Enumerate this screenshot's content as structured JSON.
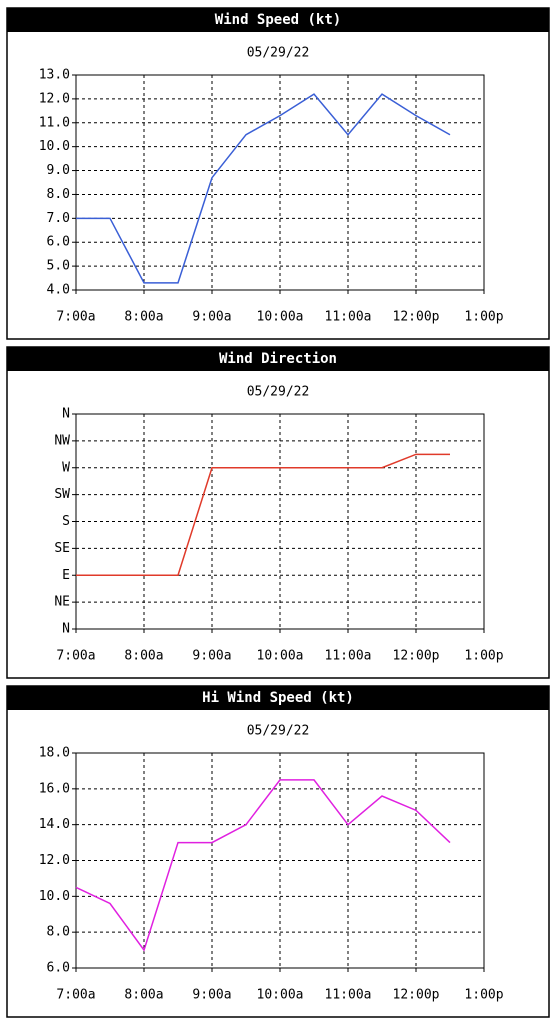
{
  "chart_data": [
    {
      "type": "line",
      "title": "Wind Speed (kt)",
      "subtitle": "05/29/22",
      "x": [
        7,
        7.5,
        8,
        8.5,
        9,
        9.5,
        10,
        10.5,
        11,
        11.5,
        12,
        12.5
      ],
      "values": [
        7.0,
        7.0,
        4.3,
        4.3,
        8.7,
        10.5,
        11.3,
        12.2,
        10.5,
        12.2,
        11.3,
        10.5
      ],
      "color": "#3a5fd6",
      "xlim": [
        7,
        13
      ],
      "xticks": [
        {
          "value": 7,
          "label": "7:00a"
        },
        {
          "value": 8,
          "label": "8:00a"
        },
        {
          "value": 9,
          "label": "9:00a"
        },
        {
          "value": 10,
          "label": "10:00a"
        },
        {
          "value": 11,
          "label": "11:00a"
        },
        {
          "value": 12,
          "label": "12:00p"
        },
        {
          "value": 13,
          "label": "1:00p"
        }
      ],
      "ylim": [
        4,
        13
      ],
      "yticks": [
        {
          "value": 4,
          "label": "4.0"
        },
        {
          "value": 5,
          "label": "5.0"
        },
        {
          "value": 6,
          "label": "6.0"
        },
        {
          "value": 7,
          "label": "7.0"
        },
        {
          "value": 8,
          "label": "8.0"
        },
        {
          "value": 9,
          "label": "9.0"
        },
        {
          "value": 10,
          "label": "10.0"
        },
        {
          "value": 11,
          "label": "11.0"
        },
        {
          "value": 12,
          "label": "12.0"
        },
        {
          "value": 13,
          "label": "13.0"
        }
      ],
      "grid": true
    },
    {
      "type": "line",
      "title": "Wind Direction",
      "subtitle": "05/29/22",
      "x": [
        7,
        7.5,
        8,
        8.5,
        9,
        9.5,
        10,
        10.5,
        11,
        11.5,
        12,
        12.5
      ],
      "values": [
        90,
        90,
        90,
        90,
        270,
        270,
        270,
        270,
        270,
        270,
        292.5,
        292.5
      ],
      "color": "#e03a2a",
      "xlim": [
        7,
        13
      ],
      "xticks": [
        {
          "value": 7,
          "label": "7:00a"
        },
        {
          "value": 8,
          "label": "8:00a"
        },
        {
          "value": 9,
          "label": "9:00a"
        },
        {
          "value": 10,
          "label": "10:00a"
        },
        {
          "value": 11,
          "label": "11:00a"
        },
        {
          "value": 12,
          "label": "12:00p"
        },
        {
          "value": 13,
          "label": "1:00p"
        }
      ],
      "ylim": [
        0,
        360
      ],
      "yticks": [
        {
          "value": 0,
          "label": "N"
        },
        {
          "value": 45,
          "label": "NE"
        },
        {
          "value": 90,
          "label": "E"
        },
        {
          "value": 135,
          "label": "SE"
        },
        {
          "value": 180,
          "label": "S"
        },
        {
          "value": 225,
          "label": "SW"
        },
        {
          "value": 270,
          "label": "W"
        },
        {
          "value": 315,
          "label": "NW"
        },
        {
          "value": 360,
          "label": "N"
        }
      ],
      "grid": true
    },
    {
      "type": "line",
      "title": "Hi Wind Speed (kt)",
      "subtitle": "05/29/22",
      "x": [
        7,
        7.5,
        8,
        8.5,
        9,
        9.5,
        10,
        10.5,
        11,
        11.5,
        12,
        12.5
      ],
      "values": [
        10.5,
        9.6,
        7.0,
        13.0,
        13.0,
        14.0,
        16.5,
        16.5,
        14.0,
        15.6,
        14.8,
        13.0
      ],
      "color": "#e020e0",
      "xlim": [
        7,
        13
      ],
      "xticks": [
        {
          "value": 7,
          "label": "7:00a"
        },
        {
          "value": 8,
          "label": "8:00a"
        },
        {
          "value": 9,
          "label": "9:00a"
        },
        {
          "value": 10,
          "label": "10:00a"
        },
        {
          "value": 11,
          "label": "11:00a"
        },
        {
          "value": 12,
          "label": "12:00p"
        },
        {
          "value": 13,
          "label": "1:00p"
        }
      ],
      "ylim": [
        6,
        18
      ],
      "yticks": [
        {
          "value": 6,
          "label": "6.0"
        },
        {
          "value": 8,
          "label": "8.0"
        },
        {
          "value": 10,
          "label": "10.0"
        },
        {
          "value": 12,
          "label": "12.0"
        },
        {
          "value": 14,
          "label": "14.0"
        },
        {
          "value": 16,
          "label": "16.0"
        },
        {
          "value": 18,
          "label": "18.0"
        }
      ],
      "grid": true
    }
  ]
}
